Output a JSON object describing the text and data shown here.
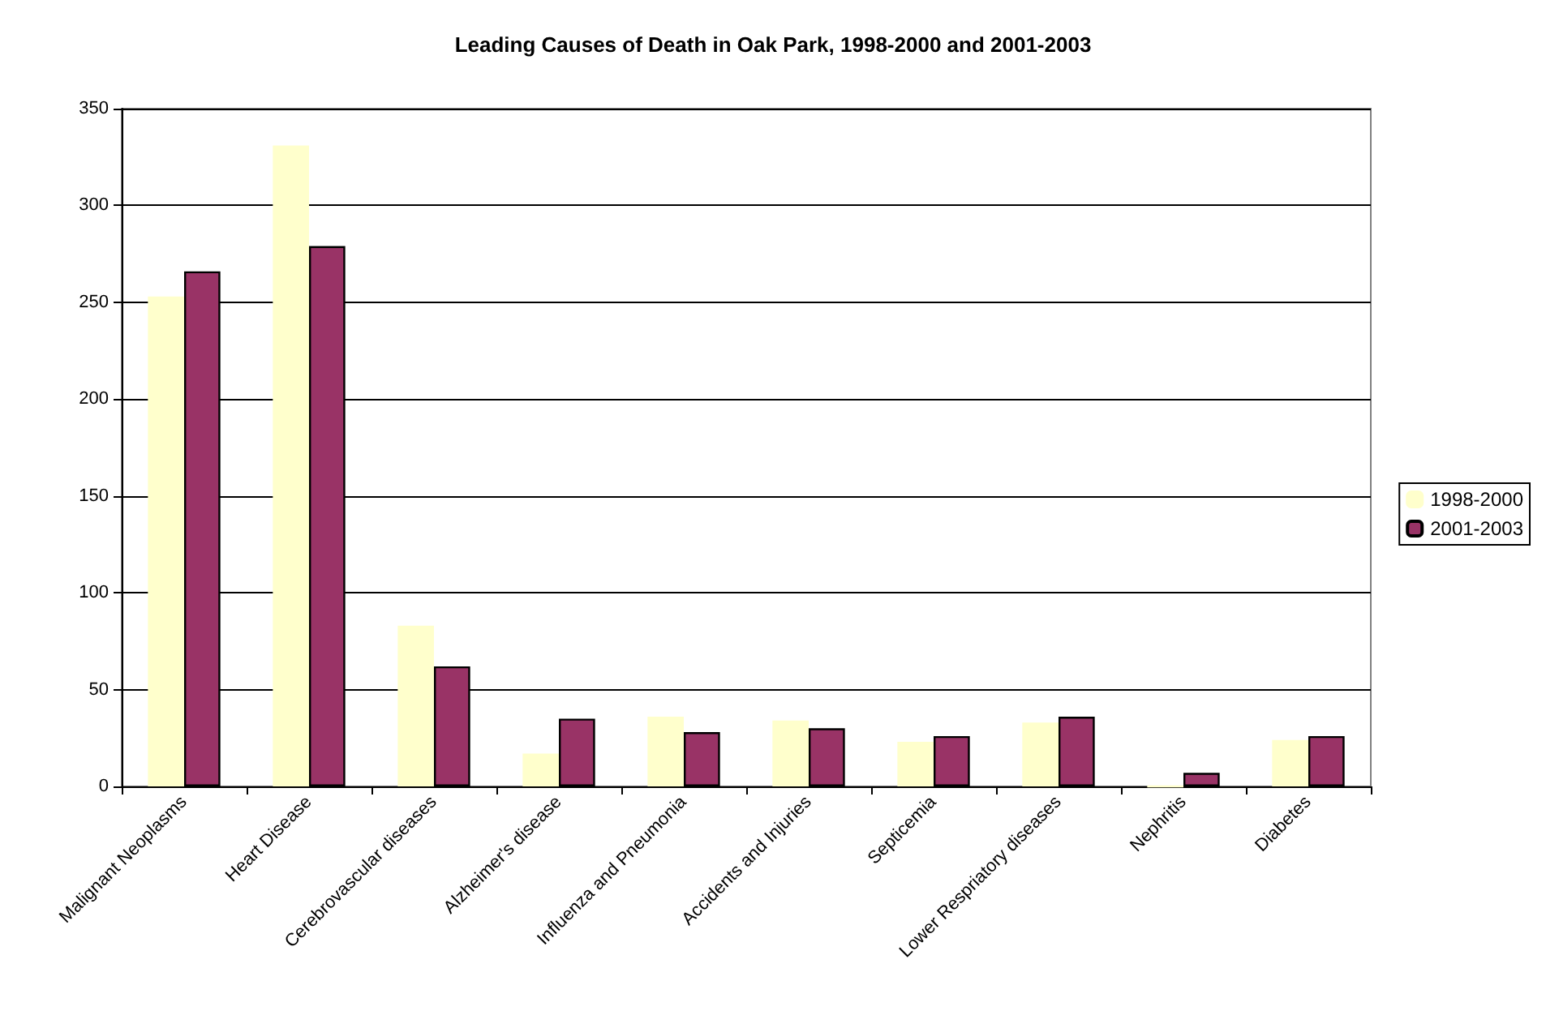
{
  "chart_data": {
    "type": "bar",
    "title": "Leading Causes of Death in Oak Park, 1998-2000 and 2001-2003",
    "categories": [
      "Malignant Neoplasms",
      "Heart Disease",
      "Cerebrovascular diseases",
      "Alzheimer's disease",
      "Influenza and Pneumonia",
      "Accidents and Injuries",
      "Septicemia",
      "Lower Respriatory diseases",
      "Nephritis",
      "Diabetes"
    ],
    "series": [
      {
        "name": "1998-2000",
        "color": "#ffffcc",
        "values": [
          253,
          331,
          83,
          17,
          36,
          34,
          23,
          33,
          0,
          24
        ]
      },
      {
        "name": "2001-2003",
        "color": "#993366",
        "values": [
          266,
          279,
          62,
          35,
          28,
          30,
          26,
          36,
          7,
          26
        ]
      }
    ],
    "ylim": [
      0,
      350
    ],
    "yticks": [
      0,
      50,
      100,
      150,
      200,
      250,
      300,
      350
    ],
    "grid": "y",
    "legend": "right"
  }
}
